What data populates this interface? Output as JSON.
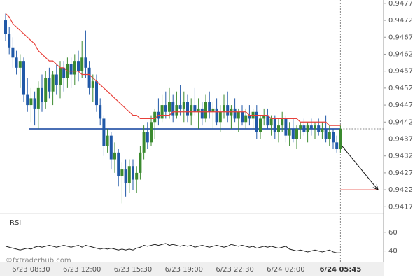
{
  "chart_data": {
    "type": "candlestick",
    "categories": [
      null,
      null,
      null,
      null,
      null,
      null,
      null,
      "6/23 08:30",
      null,
      null,
      null,
      null,
      null,
      null,
      null,
      null,
      null,
      null,
      null,
      null,
      null,
      "6/23 12:00",
      null,
      null,
      null,
      null,
      null,
      null,
      null,
      null,
      null,
      null,
      null,
      null,
      null,
      "6/23 15:30",
      null,
      null,
      null,
      null,
      null,
      null,
      null,
      null,
      null,
      null,
      null,
      null,
      null,
      "6/23 19:00",
      null,
      null,
      null,
      null,
      null,
      null,
      null,
      null,
      null,
      null,
      null,
      null,
      null,
      "6/23 22:30",
      null,
      null,
      null,
      null,
      null,
      null,
      null,
      null,
      null,
      null,
      null,
      null,
      null,
      "6/24 02:00",
      null,
      null,
      null,
      null,
      null,
      null,
      null,
      null,
      null,
      null,
      null,
      null,
      null,
      null,
      "6/24 05:45"
    ],
    "open": [
      0.9472,
      0.9468,
      0.9464,
      0.9461,
      0.9458,
      0.946,
      0.945,
      0.9447,
      0.9449,
      0.9446,
      0.9452,
      0.9448,
      0.9455,
      0.9451,
      0.9456,
      0.9453,
      0.9458,
      0.9455,
      0.9459,
      0.9456,
      0.946,
      0.9457,
      0.9461,
      0.9458,
      0.9452,
      0.9454,
      0.9447,
      0.9443,
      0.9435,
      0.9438,
      0.9431,
      0.9433,
      0.9426,
      0.9428,
      0.9424,
      0.9429,
      0.9425,
      0.9427,
      0.9433,
      0.9439,
      0.9436,
      0.9442,
      0.9445,
      0.9443,
      0.9447,
      0.9445,
      0.9448,
      0.9444,
      0.9447,
      0.9446,
      0.9448,
      0.9444,
      0.9447,
      0.9445,
      0.9446,
      0.9443,
      0.9448,
      0.9445,
      0.9446,
      0.9442,
      0.9445,
      0.9447,
      0.9444,
      0.9446,
      0.9443,
      0.9445,
      0.9442,
      0.9444,
      0.9443,
      0.9445,
      0.9439,
      0.9443,
      0.9444,
      0.9441,
      0.9443,
      0.9439,
      0.9441,
      0.9443,
      0.9438,
      0.944,
      0.9437,
      0.944,
      0.9441,
      0.9439,
      0.9441,
      0.944,
      0.9441,
      0.9439,
      0.944,
      0.9437,
      0.9439,
      0.9436,
      0.9434
    ],
    "high": [
      0.9474,
      0.947,
      0.9467,
      0.9463,
      0.9462,
      0.9461,
      0.9455,
      0.9452,
      0.9451,
      0.9454,
      0.9456,
      0.9457,
      0.9458,
      0.9457,
      0.9459,
      0.946,
      0.946,
      0.9461,
      0.9461,
      0.9462,
      0.9463,
      0.9466,
      0.9469,
      0.946,
      0.9456,
      0.9456,
      0.9449,
      0.9444,
      0.944,
      0.9439,
      0.9436,
      0.9434,
      0.943,
      0.9431,
      0.9431,
      0.9431,
      0.9429,
      0.9435,
      0.9441,
      0.9442,
      0.9444,
      0.9446,
      0.9449,
      0.945,
      0.9451,
      0.9452,
      0.945,
      0.9451,
      0.9453,
      0.9451,
      0.945,
      0.9449,
      0.9452,
      0.9449,
      0.9448,
      0.945,
      0.9451,
      0.9448,
      0.9449,
      0.9447,
      0.945,
      0.9451,
      0.9447,
      0.9449,
      0.9446,
      0.9447,
      0.9446,
      0.9447,
      0.9446,
      0.9447,
      0.9444,
      0.9446,
      0.9446,
      0.9444,
      0.9444,
      0.9443,
      0.9445,
      0.9444,
      0.9442,
      0.9443,
      0.9441,
      0.9442,
      0.9443,
      0.9442,
      0.9443,
      0.9442,
      0.9443,
      0.9442,
      0.9444,
      0.9441,
      0.944,
      0.9438,
      0.9441
    ],
    "low": [
      0.9466,
      0.9462,
      0.9458,
      0.9456,
      0.9452,
      0.9448,
      0.9445,
      0.9442,
      0.9441,
      0.944,
      0.9445,
      0.9446,
      0.9449,
      0.9447,
      0.945,
      0.9449,
      0.9451,
      0.9452,
      0.9452,
      0.9453,
      0.9454,
      0.9455,
      0.9455,
      0.945,
      0.9448,
      0.9445,
      0.9441,
      0.9432,
      0.9433,
      0.9428,
      0.9427,
      0.9423,
      0.9418,
      0.942,
      0.9421,
      0.9422,
      0.9421,
      0.9425,
      0.9431,
      0.9434,
      0.9435,
      0.9437,
      0.9441,
      0.9442,
      0.9443,
      0.9443,
      0.9442,
      0.9443,
      0.9444,
      0.9442,
      0.9442,
      0.9441,
      0.9444,
      0.944,
      0.9441,
      0.9442,
      0.9443,
      0.944,
      0.9441,
      0.9439,
      0.9443,
      0.9442,
      0.944,
      0.9442,
      0.9439,
      0.9441,
      0.944,
      0.9441,
      0.944,
      0.9437,
      0.9437,
      0.9441,
      0.944,
      0.9438,
      0.9437,
      0.9436,
      0.9439,
      0.9436,
      0.9435,
      0.9436,
      0.9434,
      0.9437,
      0.9438,
      0.9436,
      0.9438,
      0.9437,
      0.9438,
      0.9437,
      0.9436,
      0.9435,
      0.9434,
      0.9433,
      0.9433
    ],
    "close": [
      0.9468,
      0.9464,
      0.9461,
      0.9458,
      0.946,
      0.945,
      0.9447,
      0.9449,
      0.9446,
      0.9452,
      0.9448,
      0.9455,
      0.9451,
      0.9456,
      0.9453,
      0.9458,
      0.9455,
      0.9459,
      0.9456,
      0.946,
      0.9457,
      0.9461,
      0.9458,
      0.9452,
      0.9454,
      0.9447,
      0.9443,
      0.9435,
      0.9438,
      0.9431,
      0.9433,
      0.9426,
      0.9428,
      0.9424,
      0.9429,
      0.9425,
      0.9427,
      0.9433,
      0.9439,
      0.9436,
      0.9442,
      0.9445,
      0.9443,
      0.9447,
      0.9445,
      0.9448,
      0.9444,
      0.9447,
      0.9446,
      0.9448,
      0.9444,
      0.9447,
      0.9445,
      0.9446,
      0.9443,
      0.9448,
      0.9445,
      0.9446,
      0.9442,
      0.9445,
      0.9447,
      0.9444,
      0.9446,
      0.9443,
      0.9445,
      0.9442,
      0.9444,
      0.9443,
      0.9445,
      0.9439,
      0.9443,
      0.9444,
      0.9441,
      0.9443,
      0.9439,
      0.9441,
      0.9443,
      0.9438,
      0.944,
      0.9437,
      0.944,
      0.9441,
      0.9439,
      0.9441,
      0.944,
      0.9441,
      0.9439,
      0.944,
      0.9437,
      0.9439,
      0.9436,
      0.9434,
      0.944
    ],
    "up_color": "#3b8a2f",
    "down_color": "#2159a8",
    "moving_average": {
      "color": "#e8403a",
      "values": [
        0.9474,
        0.9473,
        0.9471,
        0.947,
        0.9469,
        0.9468,
        0.9467,
        0.9466,
        0.9465,
        0.9463,
        0.9462,
        0.9461,
        0.946,
        0.946,
        0.9459,
        0.9458,
        0.9458,
        0.9457,
        0.9457,
        0.9457,
        0.9457,
        0.9456,
        0.9456,
        0.9456,
        0.9455,
        0.9454,
        0.9453,
        0.9452,
        0.9451,
        0.945,
        0.9449,
        0.9448,
        0.9447,
        0.9446,
        0.9445,
        0.9444,
        0.9444,
        0.9443,
        0.9443,
        0.9443,
        0.9443,
        0.9443,
        0.9444,
        0.9444,
        0.9444,
        0.9444,
        0.9445,
        0.9445,
        0.9445,
        0.9445,
        0.9445,
        0.9445,
        0.9445,
        0.9445,
        0.9445,
        0.9445,
        0.9445,
        0.9445,
        0.9445,
        0.9445,
        0.9445,
        0.9445,
        0.9445,
        0.9445,
        0.9445,
        0.9445,
        0.9445,
        0.9444,
        0.9444,
        0.9444,
        0.9444,
        0.9444,
        0.9444,
        0.9443,
        0.9443,
        0.9443,
        0.9443,
        0.9443,
        0.9443,
        0.9443,
        0.9443,
        0.9442,
        0.9442,
        0.9442,
        0.9442,
        0.9442,
        0.9442,
        0.9442,
        0.9442,
        0.9441,
        0.9441,
        0.9441,
        0.9441
      ]
    },
    "support_level": {
      "value": 0.944,
      "color": "#4a6fb5"
    },
    "target_level": {
      "value": 0.9422,
      "color": "#e8403a"
    },
    "forecast_arrow": {
      "from": 0.9435,
      "to": 0.9422
    },
    "ylim": [
      0.9415,
      0.9478
    ],
    "yticks": [
      0.9417,
      0.9422,
      0.9427,
      0.9432,
      0.9437,
      0.9442,
      0.9447,
      0.9452,
      0.9457,
      0.9462,
      0.9467,
      0.9472,
      0.9477
    ],
    "rsi": {
      "label": "RSI",
      "color": "#222222",
      "ylim": [
        30,
        80
      ],
      "yticks": [
        40,
        60
      ],
      "values": [
        45,
        44,
        43,
        42,
        41,
        42,
        43,
        42,
        44,
        45,
        44,
        45,
        46,
        45,
        44,
        45,
        46,
        45,
        44,
        45,
        46,
        44,
        46,
        45,
        44,
        43,
        42,
        43,
        42,
        43,
        42,
        41,
        42,
        41,
        42,
        41,
        43,
        44,
        46,
        45,
        46,
        47,
        46,
        47,
        48,
        46,
        47,
        46,
        45,
        46,
        45,
        46,
        44,
        45,
        46,
        45,
        44,
        45,
        46,
        45,
        44,
        45,
        47,
        46,
        45,
        46,
        45,
        44,
        45,
        43,
        44,
        45,
        44,
        45,
        44,
        43,
        44,
        45,
        42,
        41,
        40,
        41,
        40,
        39,
        40,
        41,
        40,
        39,
        40,
        41,
        39,
        38,
        38
      ]
    },
    "watermark": "©fxtraderhub.com"
  }
}
